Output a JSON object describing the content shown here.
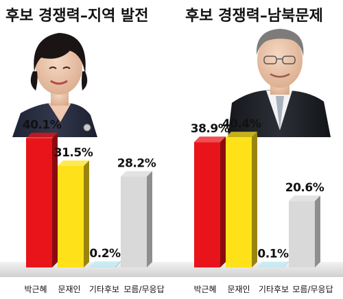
{
  "chart_data": [
    {
      "type": "bar",
      "title": "후보 경쟁력–지역 발전",
      "categories": [
        "박근혜",
        "문재인",
        "기타후보",
        "모름/무응답"
      ],
      "values": [
        40.1,
        31.5,
        0.2,
        28.2
      ],
      "value_labels": [
        "40.1%",
        "31.5%",
        "0.2%",
        "28.2%"
      ],
      "ylim": [
        0,
        45
      ],
      "grid": false,
      "legend": "none",
      "colors": [
        "#e8141a",
        "#ffe11a",
        "#bde9f4",
        "#d9d9d9"
      ],
      "side_colors": [
        "#8a0b0e",
        "#9a8410",
        "#7fb3c2",
        "#8e8e8e"
      ],
      "photo": "candidate-portrait-woman"
    },
    {
      "type": "bar",
      "title": "후보 경쟁력–남북문제",
      "categories": [
        "박근혜",
        "문재인",
        "기타후보",
        "모름/무응답"
      ],
      "values": [
        38.9,
        40.4,
        0.1,
        20.6
      ],
      "value_labels": [
        "38.9%",
        "40.4%",
        "0.1%",
        "20.6%"
      ],
      "ylim": [
        0,
        45
      ],
      "grid": false,
      "legend": "none",
      "colors": [
        "#e8141a",
        "#ffe11a",
        "#bde9f4",
        "#d9d9d9"
      ],
      "side_colors": [
        "#8a0b0e",
        "#9a8410",
        "#7fb3c2",
        "#8e8e8e"
      ],
      "photo": "candidate-portrait-man"
    }
  ]
}
